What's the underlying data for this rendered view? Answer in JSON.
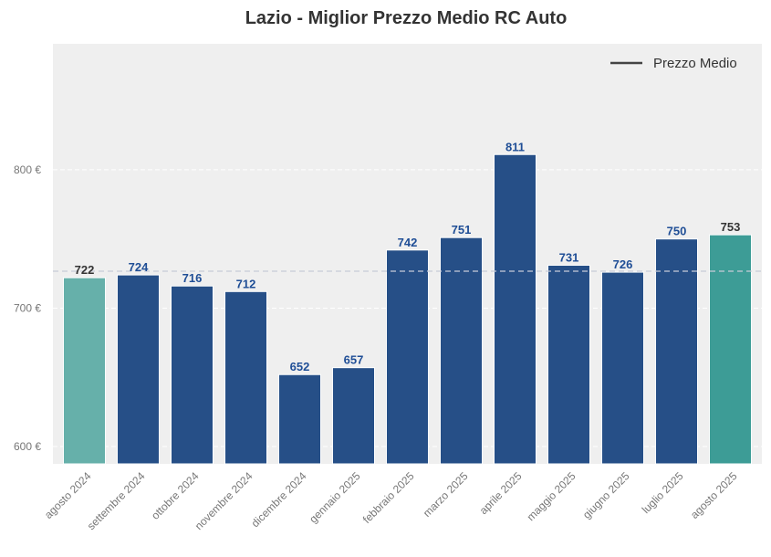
{
  "chart_data": {
    "type": "bar",
    "title": "Lazio - Miglior Prezzo Medio RC Auto",
    "categories": [
      "agosto 2024",
      "settembre 2024",
      "ottobre 2024",
      "novembre 2024",
      "dicembre 2024",
      "gennaio 2025",
      "febbraio 2025",
      "marzo 2025",
      "aprile 2025",
      "maggio 2025",
      "giugno 2025",
      "luglio 2025",
      "agosto 2025"
    ],
    "values": [
      722,
      724,
      716,
      712,
      652,
      657,
      742,
      751,
      811,
      731,
      726,
      750,
      753
    ],
    "bar_colors": [
      "#66b0aa",
      "#264f87",
      "#264f87",
      "#264f87",
      "#264f87",
      "#264f87",
      "#264f87",
      "#264f87",
      "#264f87",
      "#264f87",
      "#264f87",
      "#264f87",
      "#3d9c96"
    ],
    "label_colors": [
      "#333333",
      "#1f4e96",
      "#1f4e96",
      "#1f4e96",
      "#1f4e96",
      "#1f4e96",
      "#1f4e96",
      "#1f4e96",
      "#1f4e96",
      "#1f4e96",
      "#1f4e96",
      "#1f4e96",
      "#333333"
    ],
    "yticks": [
      600,
      700,
      800
    ],
    "ytick_labels": [
      "600 €",
      "700 €",
      "800 €"
    ],
    "ylim": [
      587.5,
      891
    ],
    "grid": true,
    "mean_line": {
      "name": "Prezzo Medio",
      "value": 726.7
    },
    "legend": {
      "placement": "top-right",
      "entries": [
        "Prezzo Medio"
      ]
    },
    "xlabel": "",
    "ylabel": ""
  }
}
